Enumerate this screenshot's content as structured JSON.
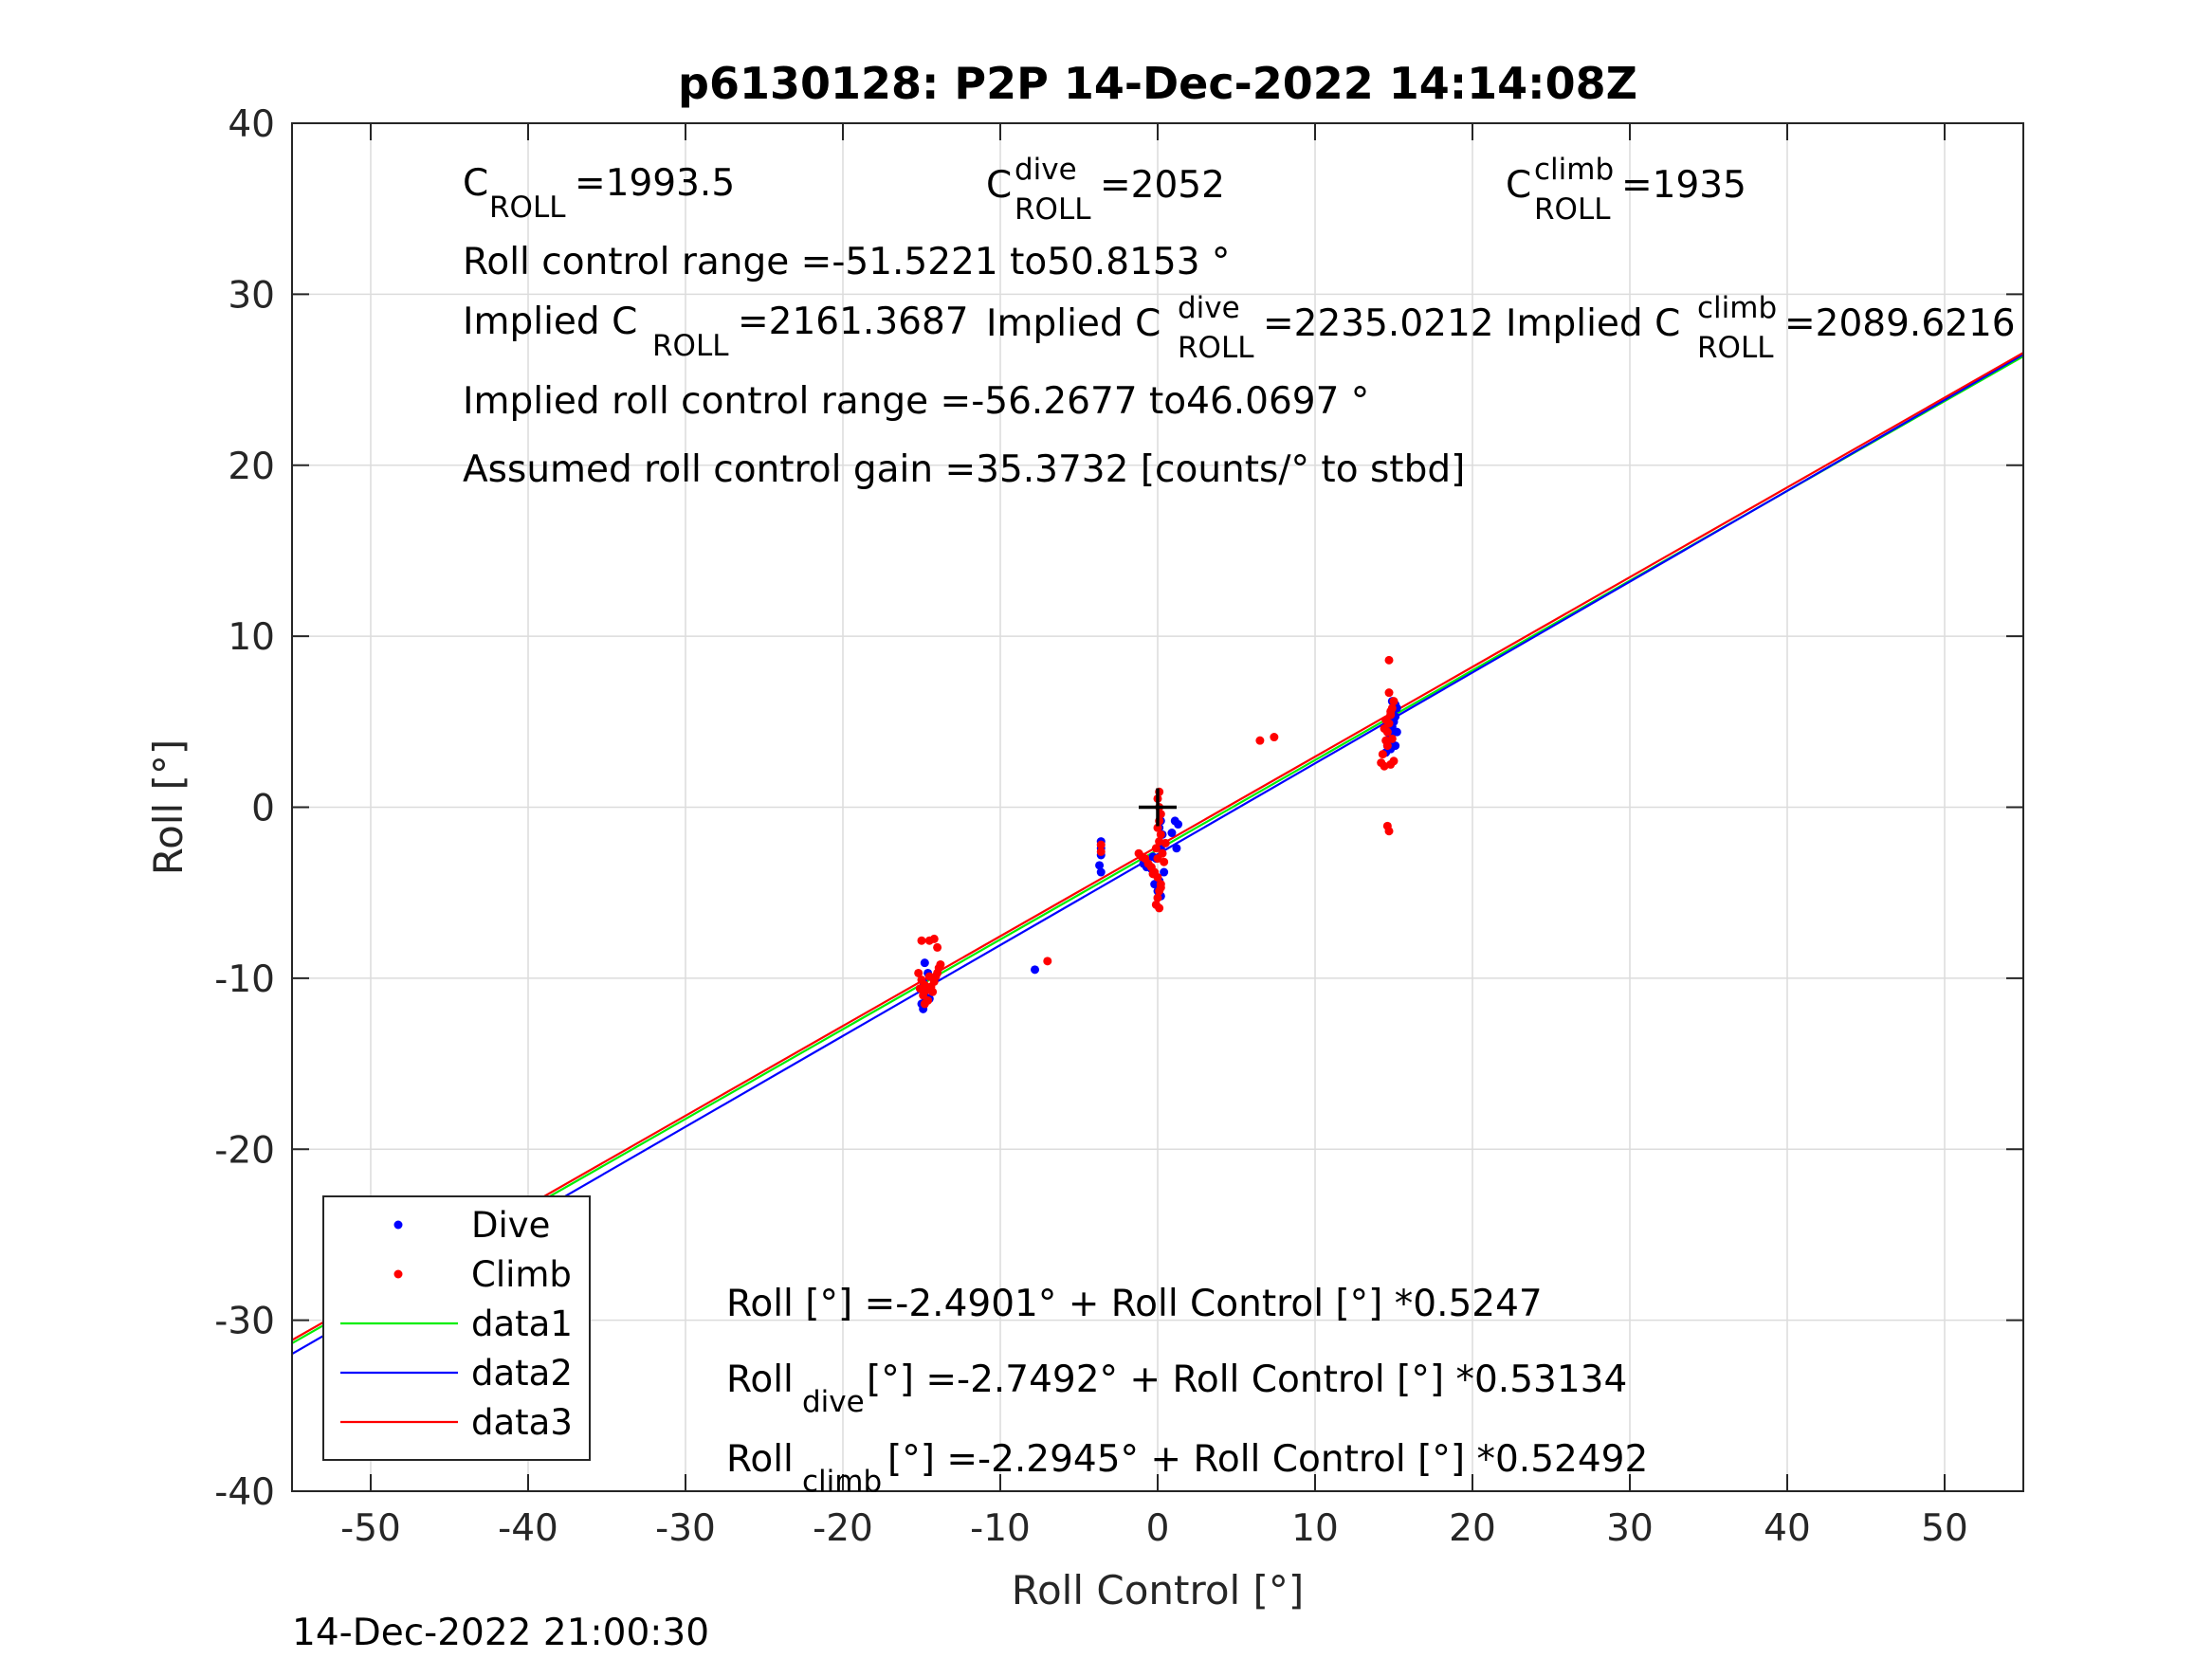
{
  "chart_data": {
    "type": "scatter",
    "title": "p6130128: P2P 14-Dec-2022 14:14:08Z",
    "xlabel": "Roll Control [°]",
    "ylabel": "Roll [°]",
    "xlim": [
      -55,
      55
    ],
    "ylim": [
      -40,
      40
    ],
    "xticks": [
      -50,
      -40,
      -30,
      -20,
      -10,
      0,
      10,
      20,
      30,
      40,
      50
    ],
    "yticks": [
      -40,
      -30,
      -20,
      -10,
      0,
      10,
      20,
      30,
      40
    ],
    "grid": true,
    "legend_position": "bottom-left",
    "series": [
      {
        "name": "Dive",
        "kind": "points",
        "color": "#0000ff",
        "points": [
          [
            -14.9,
            -11.8
          ],
          [
            -14.8,
            -11.4
          ],
          [
            -14.8,
            -11.0
          ],
          [
            -14.7,
            -10.6
          ],
          [
            -14.9,
            -10.2
          ],
          [
            -14.6,
            -9.7
          ],
          [
            -14.8,
            -9.1
          ],
          [
            -14.5,
            -11.2
          ],
          [
            -14.9,
            -10.5
          ],
          [
            -15.0,
            -11.5
          ],
          [
            -7.8,
            -9.5
          ],
          [
            -3.6,
            -2.0
          ],
          [
            -3.6,
            -2.4
          ],
          [
            -3.6,
            -2.8
          ],
          [
            -3.7,
            -3.4
          ],
          [
            -3.6,
            -3.8
          ],
          [
            -0.9,
            -3.3
          ],
          [
            -0.7,
            -3.5
          ],
          [
            -0.4,
            -3.6
          ],
          [
            -0.1,
            -3.0
          ],
          [
            -0.2,
            -4.5
          ],
          [
            0.0,
            -4.9
          ],
          [
            0.1,
            -4.3
          ],
          [
            0.2,
            -2.4
          ],
          [
            0.3,
            -1.6
          ],
          [
            0.2,
            -0.8
          ],
          [
            0.1,
            -1.2
          ],
          [
            -0.3,
            -2.9
          ],
          [
            0.4,
            -3.8
          ],
          [
            0.2,
            -5.2
          ],
          [
            1.1,
            -0.8
          ],
          [
            1.3,
            -1.0
          ],
          [
            1.2,
            -2.4
          ],
          [
            0.9,
            -1.5
          ],
          [
            14.5,
            3.2
          ],
          [
            14.6,
            3.6
          ],
          [
            14.7,
            4.0
          ],
          [
            14.8,
            4.3
          ],
          [
            14.9,
            4.7
          ],
          [
            15.0,
            5.0
          ],
          [
            15.1,
            5.3
          ],
          [
            15.0,
            5.7
          ],
          [
            15.1,
            6.0
          ],
          [
            14.9,
            6.2
          ],
          [
            15.2,
            4.4
          ],
          [
            14.7,
            3.8
          ],
          [
            14.8,
            3.4
          ],
          [
            15.1,
            3.6
          ],
          [
            14.6,
            4.9
          ],
          [
            15.2,
            5.8
          ]
        ]
      },
      {
        "name": "Climb",
        "kind": "points",
        "color": "#ff0000",
        "points": [
          [
            -15.0,
            -7.8
          ],
          [
            -14.5,
            -7.8
          ],
          [
            -14.2,
            -7.7
          ],
          [
            -14.0,
            -8.2
          ],
          [
            -15.2,
            -9.7
          ],
          [
            -15.0,
            -10.1
          ],
          [
            -14.8,
            -10.4
          ],
          [
            -14.7,
            -10.7
          ],
          [
            -14.9,
            -11.0
          ],
          [
            -14.6,
            -11.3
          ],
          [
            -14.3,
            -10.8
          ],
          [
            -14.2,
            -10.2
          ],
          [
            -14.0,
            -9.7
          ],
          [
            -13.9,
            -9.4
          ],
          [
            -13.8,
            -9.2
          ],
          [
            -14.5,
            -9.9
          ],
          [
            -14.4,
            -10.5
          ],
          [
            -15.1,
            -10.6
          ],
          [
            -14.8,
            -11.5
          ],
          [
            -14.1,
            -9.9
          ],
          [
            -7.0,
            -9.0
          ],
          [
            -3.6,
            -2.2
          ],
          [
            -3.6,
            -2.6
          ],
          [
            -1.2,
            -2.7
          ],
          [
            -1.0,
            -2.9
          ],
          [
            -0.8,
            -3.0
          ],
          [
            -0.6,
            -3.3
          ],
          [
            -0.4,
            -3.5
          ],
          [
            -0.2,
            -3.8
          ],
          [
            0.0,
            -4.1
          ],
          [
            0.2,
            -4.5
          ],
          [
            0.1,
            -4.9
          ],
          [
            0.0,
            -5.3
          ],
          [
            -0.1,
            -5.7
          ],
          [
            0.1,
            -5.9
          ],
          [
            0.2,
            -4.7
          ],
          [
            0.0,
            -3.0
          ],
          [
            -0.1,
            -2.4
          ],
          [
            0.1,
            -2.0
          ],
          [
            0.2,
            -1.6
          ],
          [
            0.0,
            -1.2
          ],
          [
            0.1,
            -0.8
          ],
          [
            0.2,
            -0.4
          ],
          [
            0.1,
            0.0
          ],
          [
            0.0,
            0.5
          ],
          [
            0.1,
            0.9
          ],
          [
            0.3,
            -2.7
          ],
          [
            0.4,
            -3.2
          ],
          [
            0.5,
            -2.1
          ],
          [
            -0.3,
            -3.9
          ],
          [
            6.5,
            3.9
          ],
          [
            7.4,
            4.1
          ],
          [
            14.2,
            2.6
          ],
          [
            14.4,
            2.4
          ],
          [
            14.8,
            2.5
          ],
          [
            15.0,
            2.7
          ],
          [
            14.3,
            3.1
          ],
          [
            14.5,
            3.9
          ],
          [
            14.6,
            4.4
          ],
          [
            14.7,
            4.9
          ],
          [
            14.8,
            5.4
          ],
          [
            14.9,
            5.8
          ],
          [
            15.0,
            6.2
          ],
          [
            14.7,
            6.7
          ],
          [
            14.7,
            8.6
          ],
          [
            14.6,
            -1.1
          ],
          [
            14.7,
            -1.4
          ],
          [
            14.4,
            4.6
          ],
          [
            14.5,
            5.1
          ],
          [
            14.9,
            4.0
          ],
          [
            14.6,
            3.6
          ],
          [
            14.8,
            5.6
          ]
        ]
      },
      {
        "name": "data1",
        "kind": "line",
        "color": "#00ee00",
        "intercept": -2.4901,
        "slope": 0.5247
      },
      {
        "name": "data2",
        "kind": "line",
        "color": "#0000ff",
        "intercept": -2.7492,
        "slope": 0.53134
      },
      {
        "name": "data3",
        "kind": "line",
        "color": "#ff0000",
        "intercept": -2.2945,
        "slope": 0.52492
      },
      {
        "name": "",
        "kind": "marker",
        "color": "#000000",
        "points": [
          [
            0,
            0
          ]
        ]
      }
    ],
    "annotations": {
      "c_roll": {
        "base": "C",
        "sub": "ROLL",
        "text": "=1993.5"
      },
      "c_roll_dive": {
        "base": "C",
        "sup": "dive",
        "sub": "ROLL",
        "text": " =2052"
      },
      "c_roll_climb": {
        "base": "C",
        "sup": "climb",
        "sub": "ROLL",
        "text": " =1935"
      },
      "roll_range": "Roll control range =-51.5221 to50.8153 °",
      "implied_c_roll": {
        "base": "Implied C",
        "sub": "ROLL",
        "text": " =2161.3687"
      },
      "implied_c_roll_dive": {
        "base": "Implied C",
        "sup": "dive",
        "sub": "ROLL",
        "text": " =2235.0212"
      },
      "implied_c_roll_climb": {
        "base": "Implied C",
        "sup": "climb",
        "sub": "ROLL",
        "text": " =2089.6216"
      },
      "implied_range": "Implied roll control range =-56.2677 to46.0697 °",
      "gain": "Assumed roll control gain =35.3732 [counts/° to stbd]",
      "fit_all": "Roll [°] =-2.4901° + Roll Control [°] *0.5247",
      "fit_dive": {
        "base": "Roll",
        "sub": "dive",
        "text": " [°] =-2.7492° + Roll Control [°] *0.53134"
      },
      "fit_climb": {
        "base": "Roll",
        "sub": "climb",
        "text": " [°] =-2.2945° + Roll Control [°] *0.52492"
      }
    }
  },
  "footer": "14-Dec-2022 21:00:30"
}
